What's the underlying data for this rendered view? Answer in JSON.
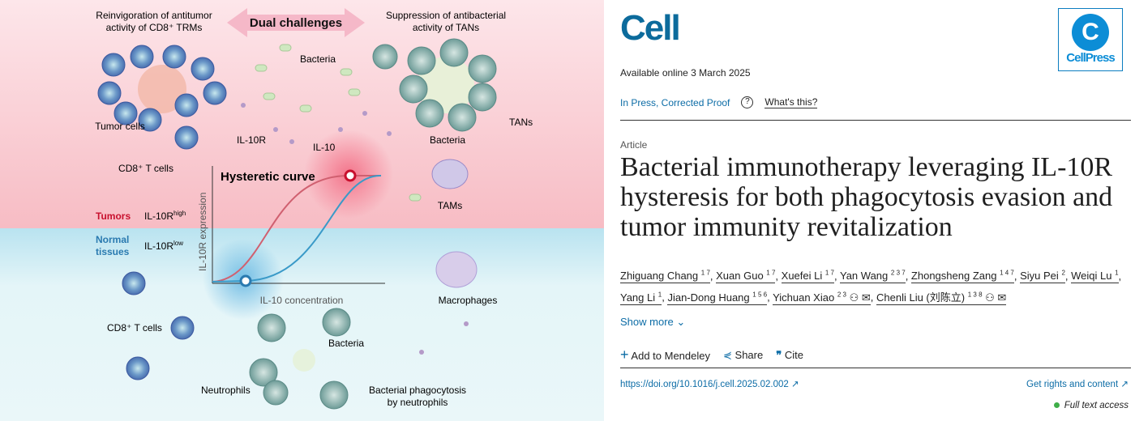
{
  "graphical_abstract": {
    "header_left": "Reinvigoration of antitumor activity of CD8⁺ TRMs",
    "header_center": "Dual challenges",
    "header_right": "Suppression of antibacterial activity of TANs",
    "labels": {
      "bacteria_top": "Bacteria",
      "tumor_cells": "Tumor cells",
      "cd8_top": "CD8⁺ T cells",
      "il10r": "IL-10R",
      "il10": "IL-10",
      "bacteria_tan": "Bacteria",
      "tans": "TANs",
      "tams": "TAMs",
      "curve_title": "Hysteretic curve",
      "tumors": "Tumors",
      "il10r_high": "IL-10Rʰⁱᵍʰ",
      "normal_tissues": "Normal tissues",
      "il10r_low": "IL-10Rˡᵒʷ",
      "y_axis": "IL-10R expression",
      "x_axis": "IL-10 concentration",
      "macrophages": "Macrophages",
      "cd8_bottom": "CD8⁺ T cells",
      "bacteria_bottom": "Bacteria",
      "neutrophils": "Neutrophils",
      "phagocytosis": "Bacterial phagocytosis by neutrophils"
    },
    "colors": {
      "tumor_bg": "#fde3e6",
      "normal_bg": "#e3f4f7",
      "tumor_red": "#c8102e",
      "normal_blue": "#2a7ab0"
    }
  },
  "journal": {
    "name": "Cell",
    "publisher": "CellPress"
  },
  "available_online": "Available online 3 March 2025",
  "status": "In Press, Corrected Proof",
  "help_icon": "question-circle-icon",
  "whats_this": "What's this?",
  "article_type": "Article",
  "title": "Bacterial immunotherapy leveraging IL-10R hysteresis for both phagocytosis evasion and tumor immunity revitalization",
  "authors": [
    {
      "name": "Zhiguang Chang",
      "sup": "1 7"
    },
    {
      "name": "Xuan Guo",
      "sup": "1 7"
    },
    {
      "name": "Xuefei Li",
      "sup": "1 7"
    },
    {
      "name": "Yan Wang",
      "sup": "2 3 7"
    },
    {
      "name": "Zhongsheng Zang",
      "sup": "1 4 7"
    },
    {
      "name": "Siyu Pei",
      "sup": "2"
    },
    {
      "name": "Weiqi Lu",
      "sup": "1"
    },
    {
      "name": "Yang Li",
      "sup": "1"
    },
    {
      "name": "Jian-Dong Huang",
      "sup": "1 5 6"
    },
    {
      "name": "Yichuan Xiao",
      "sup": "2 3",
      "icons": true
    },
    {
      "name": "Chenli Liu (刘陈立)",
      "sup": "1 3 8",
      "icons": true
    }
  ],
  "show_more": "Show more",
  "actions": {
    "mendeley": "Add to Mendeley",
    "share": "Share",
    "cite": "Cite"
  },
  "doi": "https://doi.org/10.1016/j.cell.2025.02.002",
  "rights": "Get rights and content",
  "access": "Full text access",
  "access_color": "#3fae49"
}
